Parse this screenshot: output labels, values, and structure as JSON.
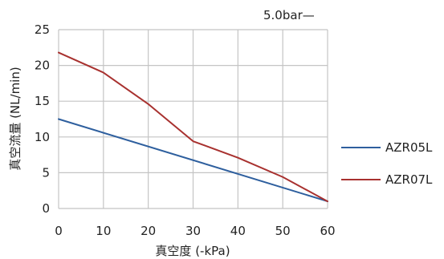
{
  "chart_data": {
    "type": "line",
    "annotation": "5.0bar—",
    "xlabel": "真空度 (-kPa)",
    "ylabel": "真空流量 (NL/min)",
    "xlim": [
      0,
      60
    ],
    "ylim": [
      0,
      25
    ],
    "xticks": [
      "0",
      "10",
      "20",
      "30",
      "40",
      "50",
      "60"
    ],
    "yticks": [
      "0",
      "5",
      "10",
      "15",
      "20",
      "25"
    ],
    "grid": true,
    "legend_position": "right",
    "series": [
      {
        "name": "AZR05L",
        "color": "#2e5f9e",
        "x": [
          0,
          60
        ],
        "y": [
          12.5,
          1.0
        ]
      },
      {
        "name": "AZR07L",
        "color": "#a8312f",
        "x": [
          0,
          10,
          20,
          30,
          40,
          50,
          60
        ],
        "y": [
          21.8,
          19.0,
          14.6,
          9.4,
          7.1,
          4.4,
          1.0
        ]
      }
    ]
  }
}
